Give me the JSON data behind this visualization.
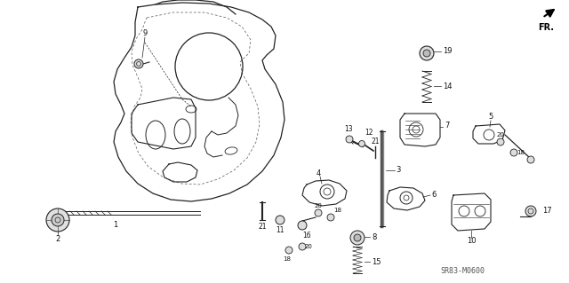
{
  "background_color": "#ffffff",
  "fig_width": 6.4,
  "fig_height": 3.19,
  "dpi": 100,
  "fr_label": "FR.",
  "watermark": "SR83-M0600",
  "line_color": "#222222",
  "dash_color": "#555555"
}
